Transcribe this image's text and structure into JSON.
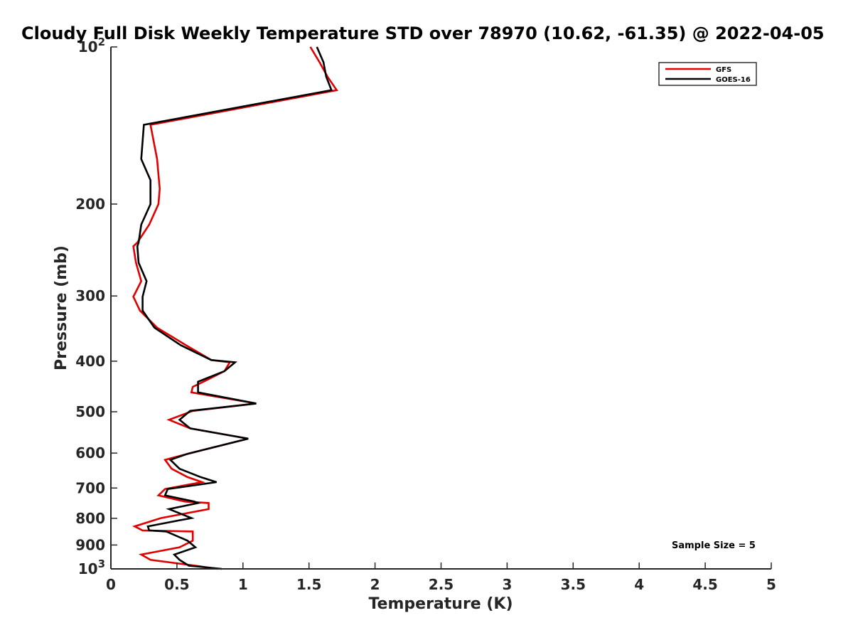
{
  "chart_data": {
    "type": "line",
    "title": "Cloudy Full Disk Weekly Temperature STD over 78970 (10.62, -61.35) @ 2022-04-05",
    "xlabel": "Temperature (K)",
    "ylabel": "Pressure (mb)",
    "xlim": [
      0,
      5
    ],
    "ylim": [
      100,
      1000
    ],
    "y_scale": "log",
    "y_reversed": true,
    "x_ticks": [
      0,
      0.5,
      1,
      1.5,
      2,
      2.5,
      3,
      3.5,
      4,
      4.5,
      5
    ],
    "x_tick_labels": [
      "0",
      "0.5",
      "1",
      "1.5",
      "2",
      "2.5",
      "3",
      "3.5",
      "4",
      "4.5",
      "5"
    ],
    "y_ticks": [
      {
        "value": 100,
        "base": "10",
        "exp": "2"
      },
      {
        "value": 200,
        "label": "200"
      },
      {
        "value": 300,
        "label": "300"
      },
      {
        "value": 400,
        "label": "400"
      },
      {
        "value": 500,
        "label": "500"
      },
      {
        "value": 600,
        "label": "600"
      },
      {
        "value": 700,
        "label": "700"
      },
      {
        "value": 800,
        "label": "800"
      },
      {
        "value": 900,
        "label": "900"
      },
      {
        "value": 1000,
        "base": "10",
        "exp": "3"
      }
    ],
    "grid": false,
    "legend_position": "top-right",
    "annotation": "Sample Size = 5",
    "series": [
      {
        "name": "GFS",
        "color": "#e00000",
        "points": [
          [
            1.51,
            100
          ],
          [
            1.58,
            107
          ],
          [
            1.64,
            114
          ],
          [
            1.71,
            121
          ],
          [
            0.3,
            141
          ],
          [
            0.35,
            164
          ],
          [
            0.37,
            187
          ],
          [
            0.36,
            200
          ],
          [
            0.29,
            219
          ],
          [
            0.2,
            237
          ],
          [
            0.17,
            241
          ],
          [
            0.19,
            259
          ],
          [
            0.23,
            281
          ],
          [
            0.17,
            301
          ],
          [
            0.22,
            320
          ],
          [
            0.35,
            345
          ],
          [
            0.57,
            373
          ],
          [
            0.76,
            398
          ],
          [
            0.9,
            402
          ],
          [
            0.86,
            418
          ],
          [
            0.7,
            438
          ],
          [
            0.62,
            448
          ],
          [
            0.61,
            459
          ],
          [
            1.1,
            482
          ],
          [
            0.62,
            498
          ],
          [
            0.44,
            518
          ],
          [
            0.6,
            538
          ],
          [
            1.04,
            563
          ],
          [
            0.58,
            602
          ],
          [
            0.41,
            618
          ],
          [
            0.46,
            643
          ],
          [
            0.58,
            667
          ],
          [
            0.69,
            682
          ],
          [
            0.41,
            703
          ],
          [
            0.36,
            723
          ],
          [
            0.56,
            743
          ],
          [
            0.74,
            748
          ],
          [
            0.74,
            768
          ],
          [
            0.38,
            799
          ],
          [
            0.18,
            829
          ],
          [
            0.24,
            844
          ],
          [
            0.62,
            848
          ],
          [
            0.62,
            883
          ],
          [
            0.52,
            909
          ],
          [
            0.23,
            939
          ],
          [
            0.3,
            961
          ],
          [
            0.64,
            986
          ],
          [
            0.81,
            1000
          ]
        ]
      },
      {
        "name": "GOES-16",
        "color": "#000000",
        "points": [
          [
            1.56,
            100
          ],
          [
            1.61,
            107
          ],
          [
            1.63,
            114
          ],
          [
            1.67,
            121
          ],
          [
            0.25,
            141
          ],
          [
            0.23,
            164
          ],
          [
            0.3,
            180
          ],
          [
            0.3,
            200
          ],
          [
            0.23,
            219
          ],
          [
            0.21,
            237
          ],
          [
            0.2,
            241
          ],
          [
            0.21,
            259
          ],
          [
            0.27,
            281
          ],
          [
            0.24,
            301
          ],
          [
            0.24,
            320
          ],
          [
            0.33,
            345
          ],
          [
            0.53,
            373
          ],
          [
            0.76,
            398
          ],
          [
            0.94,
            402
          ],
          [
            0.86,
            418
          ],
          [
            0.66,
            438
          ],
          [
            0.66,
            448
          ],
          [
            0.66,
            459
          ],
          [
            1.1,
            482
          ],
          [
            0.6,
            498
          ],
          [
            0.52,
            518
          ],
          [
            0.6,
            538
          ],
          [
            1.04,
            563
          ],
          [
            0.58,
            602
          ],
          [
            0.45,
            618
          ],
          [
            0.52,
            643
          ],
          [
            0.68,
            667
          ],
          [
            0.8,
            682
          ],
          [
            0.43,
            703
          ],
          [
            0.41,
            723
          ],
          [
            0.63,
            743
          ],
          [
            0.66,
            748
          ],
          [
            0.44,
            768
          ],
          [
            0.61,
            799
          ],
          [
            0.28,
            829
          ],
          [
            0.29,
            844
          ],
          [
            0.42,
            848
          ],
          [
            0.58,
            883
          ],
          [
            0.64,
            909
          ],
          [
            0.48,
            939
          ],
          [
            0.52,
            961
          ],
          [
            0.59,
            986
          ],
          [
            0.84,
            1000
          ]
        ]
      }
    ]
  }
}
